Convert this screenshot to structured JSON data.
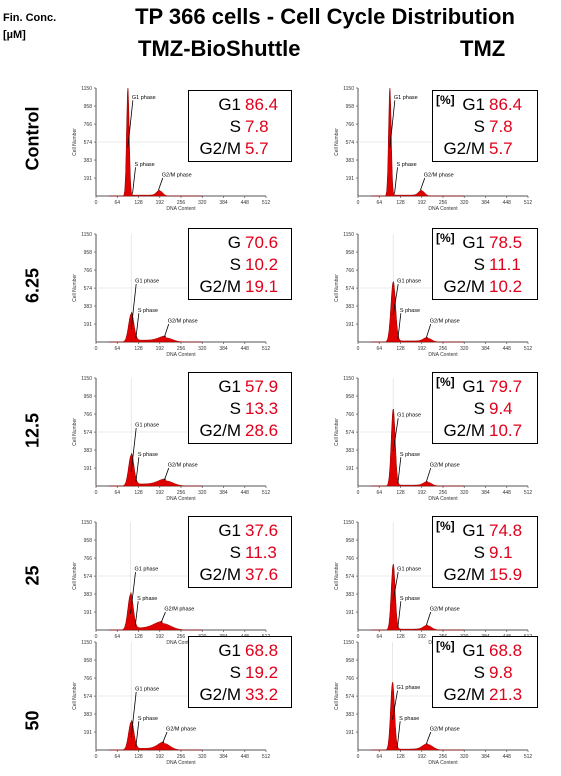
{
  "fin_conc_label": "Fin. Conc.",
  "fin_conc_unit": "[µM]",
  "title": "TP 366 cells - Cell Cycle Distribution",
  "column_titles": [
    "TMZ-BioShuttle",
    "TMZ"
  ],
  "row_labels": [
    "Control",
    "6.25",
    "12.5",
    "25",
    "50"
  ],
  "percent_label": "[%]",
  "colors": {
    "fill": "#e00000",
    "text_value": "#e0001b",
    "axis": "#555555",
    "annot": "#000000"
  },
  "chart_data": [
    {
      "type": "area",
      "panel": "TMZ-BioShuttle Control",
      "xlabel": "DNA Content",
      "ylabel": "Cell Number",
      "xlim": [
        0,
        512
      ],
      "ylim": [
        0,
        1150
      ],
      "xticks": [
        0,
        64,
        128,
        192,
        256,
        320,
        384,
        448,
        512
      ],
      "yticks": [
        191,
        383,
        574,
        766,
        958,
        1150
      ],
      "g1_pos": 96,
      "g1_peak": 1150,
      "g1_sigma": 4,
      "g2_pos": 192,
      "g2_peak": 55,
      "g2_sigma": 9,
      "s_level": 10,
      "annotations": [
        "G1 phase",
        "S phase",
        "G2/M phase"
      ],
      "stats": [
        {
          "phase": "G1",
          "value": "86.4"
        },
        {
          "phase": "S",
          "value": "7.8"
        },
        {
          "phase": "G2/M",
          "value": "5.7"
        }
      ],
      "show_percent": false
    },
    {
      "type": "area",
      "panel": "TMZ Control",
      "xlabel": "DNA Content",
      "ylabel": "Cell Number",
      "xlim": [
        0,
        512
      ],
      "ylim": [
        0,
        1150
      ],
      "xticks": [
        0,
        64,
        128,
        192,
        256,
        320,
        384,
        448,
        512
      ],
      "yticks": [
        191,
        383,
        574,
        766,
        958,
        1150
      ],
      "g1_pos": 96,
      "g1_peak": 1150,
      "g1_sigma": 4,
      "g2_pos": 192,
      "g2_peak": 55,
      "g2_sigma": 9,
      "s_level": 10,
      "annotations": [
        "G1 phase",
        "S phase",
        "G2/M phase"
      ],
      "stats": [
        {
          "phase": "G1",
          "value": "86.4"
        },
        {
          "phase": "S",
          "value": "7.8"
        },
        {
          "phase": "G2/M",
          "value": "5.7"
        }
      ],
      "show_percent": true
    },
    {
      "type": "area",
      "panel": "TMZ-BioShuttle 6.25",
      "xlabel": "DNA Content",
      "ylabel": "Cell Number",
      "xlim": [
        0,
        512
      ],
      "ylim": [
        0,
        1150
      ],
      "xticks": [
        0,
        64,
        128,
        192,
        256,
        320,
        384,
        448,
        512
      ],
      "yticks": [
        191,
        383,
        574,
        766,
        958,
        1150
      ],
      "g1_pos": 106,
      "g1_peak": 300,
      "g1_sigma": 8,
      "g2_pos": 210,
      "g2_peak": 45,
      "g2_sigma": 20,
      "s_level": 20,
      "annotations": [
        "G1 phase",
        "S phase",
        "G2/M phase"
      ],
      "stats": [
        {
          "phase": "G",
          "value": "70.6"
        },
        {
          "phase": "S",
          "value": "10.2"
        },
        {
          "phase": "G2/M",
          "value": "19.1"
        }
      ],
      "show_percent": false
    },
    {
      "type": "area",
      "panel": "TMZ 6.25",
      "xlabel": "DNA Content",
      "ylabel": "Cell Number",
      "xlim": [
        0,
        512
      ],
      "ylim": [
        0,
        1150
      ],
      "xticks": [
        0,
        64,
        128,
        192,
        256,
        320,
        384,
        448,
        512
      ],
      "yticks": [
        191,
        383,
        574,
        766,
        958,
        1150
      ],
      "g1_pos": 106,
      "g1_peak": 640,
      "g1_sigma": 7,
      "g2_pos": 210,
      "g2_peak": 40,
      "g2_sigma": 12,
      "s_level": 12,
      "annotations": [
        "G1 phase",
        "S phase",
        "G2/M phase"
      ],
      "stats": [
        {
          "phase": "G1",
          "value": "78.5"
        },
        {
          "phase": "S",
          "value": "11.1"
        },
        {
          "phase": "G2/M",
          "value": "10.2"
        }
      ],
      "show_percent": true
    },
    {
      "type": "area",
      "panel": "TMZ-BioShuttle 12.5",
      "xlabel": "DNA Content",
      "ylabel": "Cell Number",
      "xlim": [
        0,
        512
      ],
      "ylim": [
        0,
        1150
      ],
      "xticks": [
        0,
        64,
        128,
        192,
        256,
        320,
        384,
        448,
        512
      ],
      "yticks": [
        191,
        383,
        574,
        766,
        958,
        1150
      ],
      "g1_pos": 106,
      "g1_peak": 330,
      "g1_sigma": 8,
      "g2_pos": 210,
      "g2_peak": 55,
      "g2_sigma": 22,
      "s_level": 22,
      "annotations": [
        "G1 phase",
        "S phase",
        "G2/M phase"
      ],
      "stats": [
        {
          "phase": "G1",
          "value": "57.9"
        },
        {
          "phase": "S",
          "value": "13.3"
        },
        {
          "phase": "G2/M",
          "value": "28.6"
        }
      ],
      "show_percent": false
    },
    {
      "type": "area",
      "panel": "TMZ 12.5",
      "xlabel": "DNA Content",
      "ylabel": "Cell Number",
      "xlim": [
        0,
        512
      ],
      "ylim": [
        0,
        1150
      ],
      "xticks": [
        0,
        64,
        128,
        192,
        256,
        320,
        384,
        448,
        512
      ],
      "yticks": [
        191,
        383,
        574,
        766,
        958,
        1150
      ],
      "g1_pos": 106,
      "g1_peak": 820,
      "g1_sigma": 6,
      "g2_pos": 210,
      "g2_peak": 40,
      "g2_sigma": 12,
      "s_level": 10,
      "annotations": [
        "G1 phase",
        "S phase",
        "G2/M phase"
      ],
      "stats": [
        {
          "phase": "G1",
          "value": "79.7"
        },
        {
          "phase": "S",
          "value": "9.4"
        },
        {
          "phase": "G2/M",
          "value": "10.7"
        }
      ],
      "show_percent": true
    },
    {
      "type": "area",
      "panel": "TMZ-BioShuttle 25",
      "xlabel": "DNA Content",
      "ylabel": "Cell Number",
      "xlim": [
        0,
        512
      ],
      "ylim": [
        0,
        1150
      ],
      "xticks": [
        0,
        64,
        128,
        192,
        256,
        320,
        384,
        448,
        512
      ],
      "yticks": [
        191,
        383,
        574,
        766,
        958,
        1150
      ],
      "g1_pos": 104,
      "g1_peak": 380,
      "g1_sigma": 8,
      "g2_pos": 200,
      "g2_peak": 70,
      "g2_sigma": 25,
      "s_level": 22,
      "annotations": [
        "G1 phase",
        "S phase",
        "G2/M phase"
      ],
      "stats": [
        {
          "phase": "G1",
          "value": "37.6"
        },
        {
          "phase": "S",
          "value": "11.3"
        },
        {
          "phase": "G2/M",
          "value": "37.6"
        }
      ],
      "show_percent": false
    },
    {
      "type": "area",
      "panel": "TMZ 25",
      "xlabel": "DNA Content",
      "ylabel": "Cell Number",
      "xlim": [
        0,
        512
      ],
      "ylim": [
        0,
        1150
      ],
      "xticks": [
        0,
        64,
        128,
        192,
        256,
        320,
        384,
        448,
        512
      ],
      "yticks": [
        191,
        383,
        574,
        766,
        958,
        1150
      ],
      "g1_pos": 106,
      "g1_peak": 700,
      "g1_sigma": 6,
      "g2_pos": 210,
      "g2_peak": 45,
      "g2_sigma": 12,
      "s_level": 10,
      "annotations": [
        "G1 phase",
        "S phase",
        "G2/M phase"
      ],
      "stats": [
        {
          "phase": "G1",
          "value": "74.8"
        },
        {
          "phase": "S",
          "value": "9.1"
        },
        {
          "phase": "G2/M",
          "value": "15.9"
        }
      ],
      "show_percent": true
    },
    {
      "type": "area",
      "panel": "TMZ-BioShuttle 50",
      "xlabel": "DNA Content",
      "ylabel": "Cell Number",
      "xlim": [
        0,
        512
      ],
      "ylim": [
        0,
        1150
      ],
      "xticks": [
        0,
        64,
        128,
        192,
        256,
        320,
        384,
        448,
        512
      ],
      "yticks": [
        191,
        383,
        574,
        766,
        958,
        1150
      ],
      "g1_pos": 106,
      "g1_peak": 300,
      "g1_sigma": 8,
      "g2_pos": 205,
      "g2_peak": 70,
      "g2_sigma": 18,
      "s_level": 18,
      "annotations": [
        "G1 phase",
        "S phase",
        "G2/M phase"
      ],
      "stats": [
        {
          "phase": "G1",
          "value": "68.8"
        },
        {
          "phase": "S",
          "value": "19.2"
        },
        {
          "phase": "G2/M",
          "value": "33.2"
        }
      ],
      "show_percent": false
    },
    {
      "type": "area",
      "panel": "TMZ 50",
      "xlabel": "DNA Content",
      "ylabel": "Cell Number",
      "xlim": [
        0,
        512
      ],
      "ylim": [
        0,
        1150
      ],
      "xticks": [
        0,
        64,
        128,
        192,
        256,
        320,
        384,
        448,
        512
      ],
      "yticks": [
        191,
        383,
        574,
        766,
        958,
        1150
      ],
      "g1_pos": 104,
      "g1_peak": 720,
      "g1_sigma": 6,
      "g2_pos": 210,
      "g2_peak": 60,
      "g2_sigma": 15,
      "s_level": 10,
      "annotations": [
        "G1 phase",
        "S phase",
        "G2/M phase"
      ],
      "stats": [
        {
          "phase": "G1",
          "value": "68.8"
        },
        {
          "phase": "S",
          "value": "9.8"
        },
        {
          "phase": "G2/M",
          "value": "21.3"
        }
      ],
      "show_percent": true
    }
  ]
}
